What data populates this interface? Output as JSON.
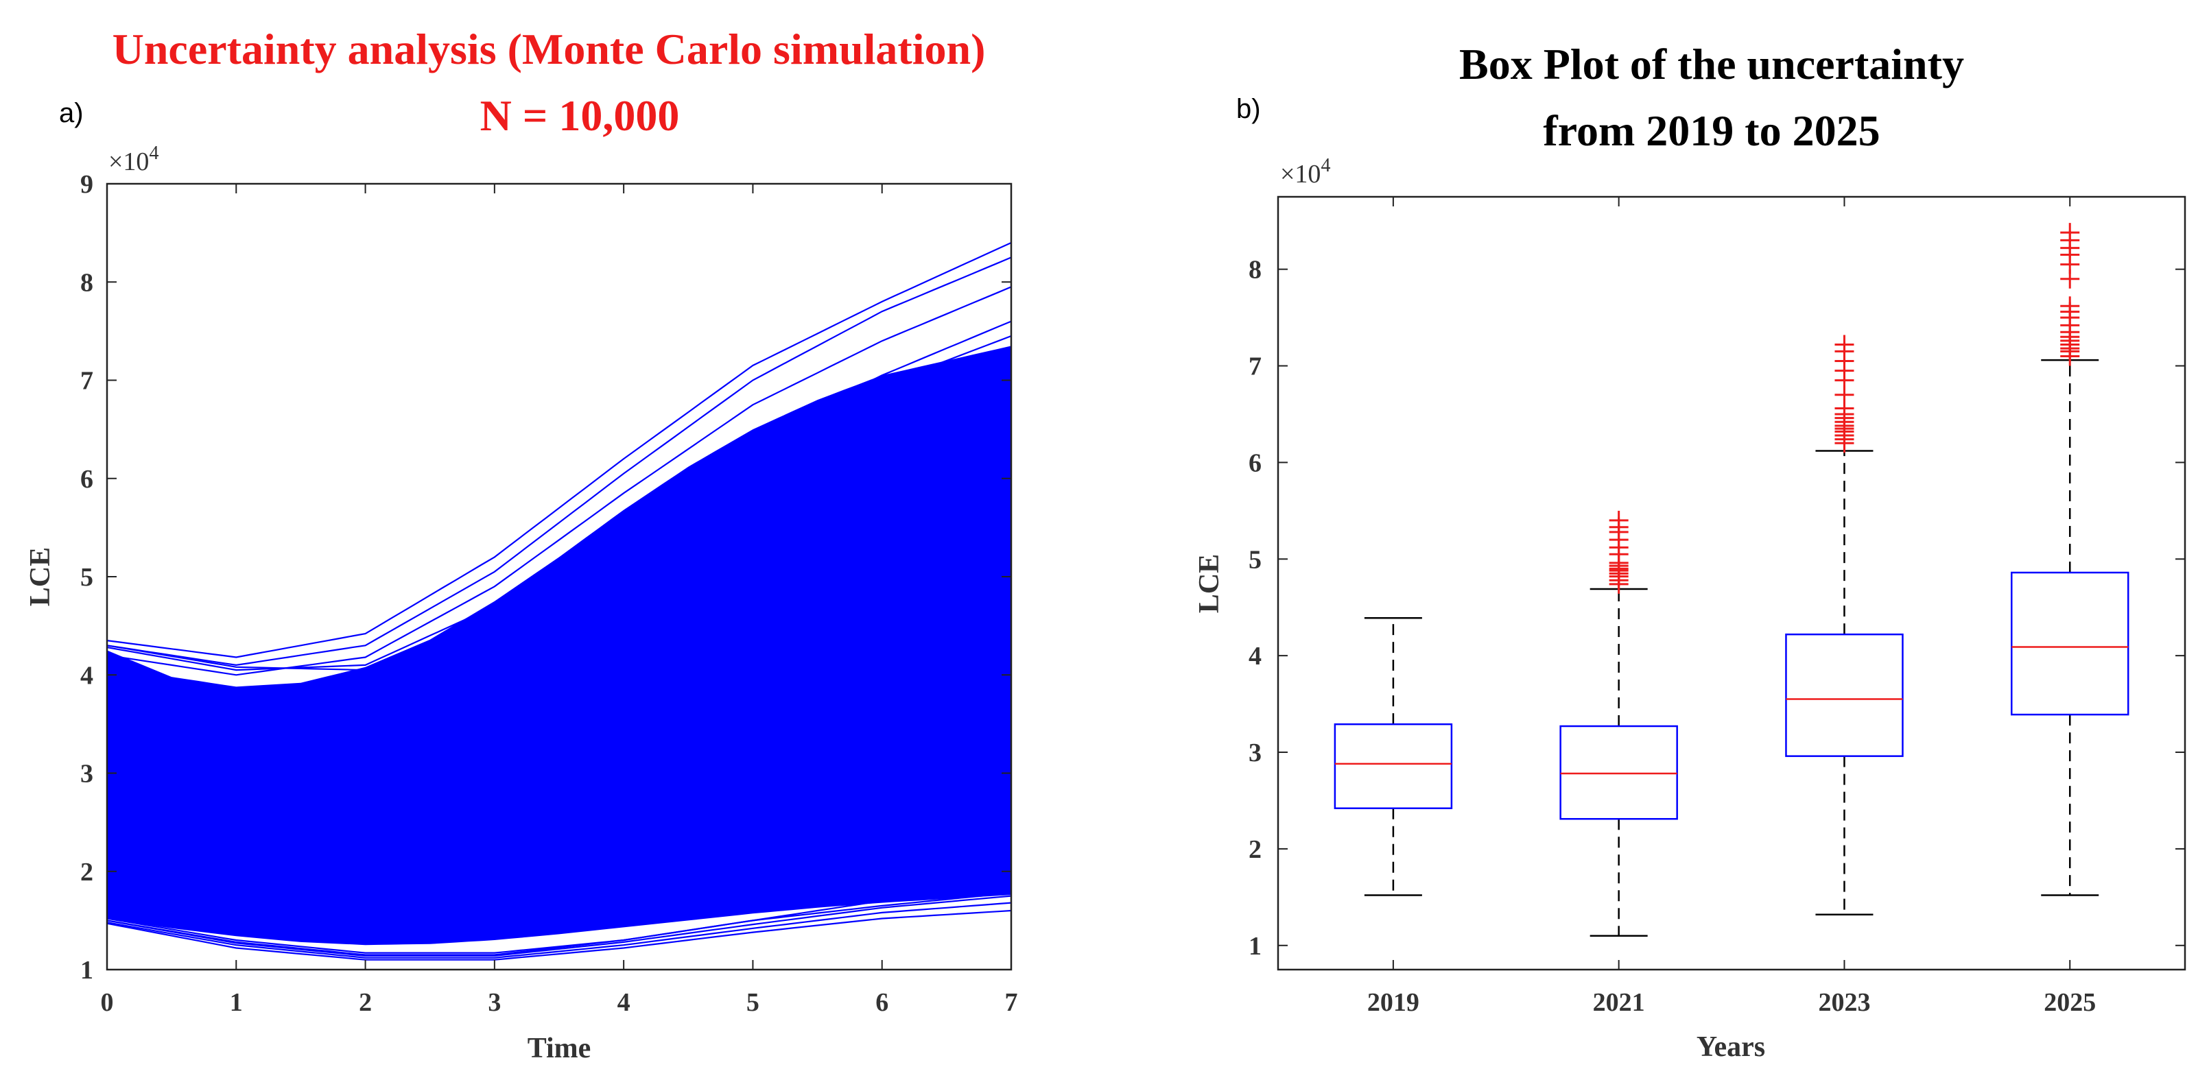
{
  "chart_data": [
    {
      "type": "line",
      "panel_label": "a)",
      "title": "Uncertainty analysis (Monte Carlo simulation)",
      "subtitle": "N = 10,000",
      "title_color": "#ee1c1c",
      "series_color": "#0000ff",
      "xlabel": "Time",
      "ylabel": "LCE",
      "exponent_label": "×10",
      "exponent_power": "4",
      "xlim": [
        0,
        7
      ],
      "ylim": [
        1,
        9
      ],
      "x_ticks": [
        0,
        1,
        2,
        3,
        4,
        5,
        6,
        7
      ],
      "y_ticks": [
        1,
        2,
        3,
        4,
        5,
        6,
        7,
        8,
        9
      ],
      "num_simulations": 10000,
      "band_upper": {
        "x": [
          0,
          0.5,
          1,
          1.5,
          2,
          2.5,
          3,
          3.5,
          4,
          4.5,
          5,
          5.5,
          6,
          6.5,
          7
        ],
        "y": [
          4.25,
          3.98,
          3.88,
          3.92,
          4.08,
          4.36,
          4.75,
          5.2,
          5.68,
          6.12,
          6.5,
          6.8,
          7.05,
          7.2,
          7.35
        ]
      },
      "band_lower": {
        "x": [
          0,
          0.5,
          1,
          1.5,
          2,
          2.5,
          3,
          3.5,
          4,
          4.5,
          5,
          5.5,
          6,
          6.5,
          7
        ],
        "y": [
          1.52,
          1.42,
          1.34,
          1.28,
          1.25,
          1.26,
          1.3,
          1.36,
          1.43,
          1.5,
          1.57,
          1.63,
          1.68,
          1.72,
          1.76
        ]
      },
      "outlier_traces_upper": [
        {
          "x": [
            0,
            1,
            2,
            3,
            4,
            5,
            6,
            7
          ],
          "y": [
            4.35,
            4.18,
            4.42,
            5.2,
            6.2,
            7.15,
            7.8,
            8.4
          ]
        },
        {
          "x": [
            0,
            1,
            2,
            3,
            4,
            5,
            6,
            7
          ],
          "y": [
            4.3,
            4.1,
            4.3,
            5.05,
            6.05,
            7.0,
            7.7,
            8.25
          ]
        },
        {
          "x": [
            0,
            1,
            2,
            3,
            4,
            5,
            6,
            7
          ],
          "y": [
            4.2,
            4.0,
            4.18,
            4.9,
            5.85,
            6.75,
            7.4,
            7.95
          ]
        },
        {
          "x": [
            0,
            1,
            2,
            3,
            4,
            5,
            6,
            7
          ],
          "y": [
            4.28,
            4.05,
            4.1,
            4.7,
            5.55,
            6.4,
            7.05,
            7.6
          ]
        },
        {
          "x": [
            0,
            1,
            2,
            3,
            4,
            5,
            6,
            7
          ],
          "y": [
            4.3,
            4.08,
            4.05,
            4.55,
            5.35,
            6.2,
            6.95,
            7.45
          ]
        }
      ],
      "outlier_traces_lower": [
        {
          "x": [
            0,
            1,
            2,
            3,
            4,
            5,
            6,
            7
          ],
          "y": [
            1.48,
            1.25,
            1.12,
            1.12,
            1.25,
            1.42,
            1.58,
            1.68
          ]
        },
        {
          "x": [
            0,
            1,
            2,
            3,
            4,
            5,
            6,
            7
          ],
          "y": [
            1.5,
            1.27,
            1.14,
            1.14,
            1.28,
            1.46,
            1.63,
            1.75
          ]
        },
        {
          "x": [
            0,
            1,
            2,
            3,
            4,
            5,
            6,
            7
          ],
          "y": [
            1.47,
            1.22,
            1.1,
            1.1,
            1.22,
            1.38,
            1.52,
            1.6
          ]
        },
        {
          "x": [
            0,
            1,
            2,
            3,
            4,
            5,
            6,
            7
          ],
          "y": [
            1.52,
            1.3,
            1.17,
            1.17,
            1.3,
            1.5,
            1.7,
            1.82
          ]
        },
        {
          "x": [
            0,
            1,
            2,
            3,
            4,
            5,
            6,
            7
          ],
          "y": [
            1.5,
            1.28,
            1.15,
            1.15,
            1.3,
            1.5,
            1.65,
            1.78
          ]
        }
      ]
    },
    {
      "type": "box",
      "panel_label": "b)",
      "title": "Box Plot of the uncertainty",
      "subtitle": "from 2019 to 2025",
      "xlabel": "Years",
      "ylabel": "LCE",
      "exponent_label": "×10",
      "exponent_power": "4",
      "ylim": [
        0.75,
        8.75
      ],
      "y_ticks": [
        1,
        2,
        3,
        4,
        5,
        6,
        7,
        8
      ],
      "box_color": "#0000ff",
      "median_color": "#ee1c1c",
      "outlier_color": "#ee1c1c",
      "categories": [
        "2019",
        "2021",
        "2023",
        "2025"
      ],
      "boxes": [
        {
          "label": "2019",
          "whisker_low": 1.52,
          "q1": 2.42,
          "median": 2.88,
          "q3": 3.29,
          "whisker_high": 4.39,
          "outliers": []
        },
        {
          "label": "2021",
          "whisker_low": 1.1,
          "q1": 2.31,
          "median": 2.78,
          "q3": 3.27,
          "whisker_high": 4.69,
          "outliers": [
            4.74,
            4.78,
            4.82,
            4.85,
            4.88,
            4.9,
            4.93,
            4.96,
            5.05,
            5.12,
            5.2,
            5.28,
            5.33,
            5.4
          ]
        },
        {
          "label": "2023",
          "whisker_low": 1.32,
          "q1": 2.96,
          "median": 3.55,
          "q3": 4.22,
          "whisker_high": 6.12,
          "outliers": [
            6.2,
            6.24,
            6.28,
            6.32,
            6.35,
            6.38,
            6.42,
            6.46,
            6.5,
            6.56,
            6.7,
            6.85,
            6.95,
            7.05,
            7.15,
            7.22
          ]
        },
        {
          "label": "2025",
          "whisker_low": 1.52,
          "q1": 3.39,
          "median": 4.09,
          "q3": 4.86,
          "whisker_high": 7.06,
          "outliers": [
            7.1,
            7.15,
            7.18,
            7.22,
            7.26,
            7.3,
            7.35,
            7.42,
            7.5,
            7.56,
            7.62,
            7.9,
            8.05,
            8.15,
            8.22,
            8.3,
            8.38
          ]
        }
      ]
    }
  ]
}
